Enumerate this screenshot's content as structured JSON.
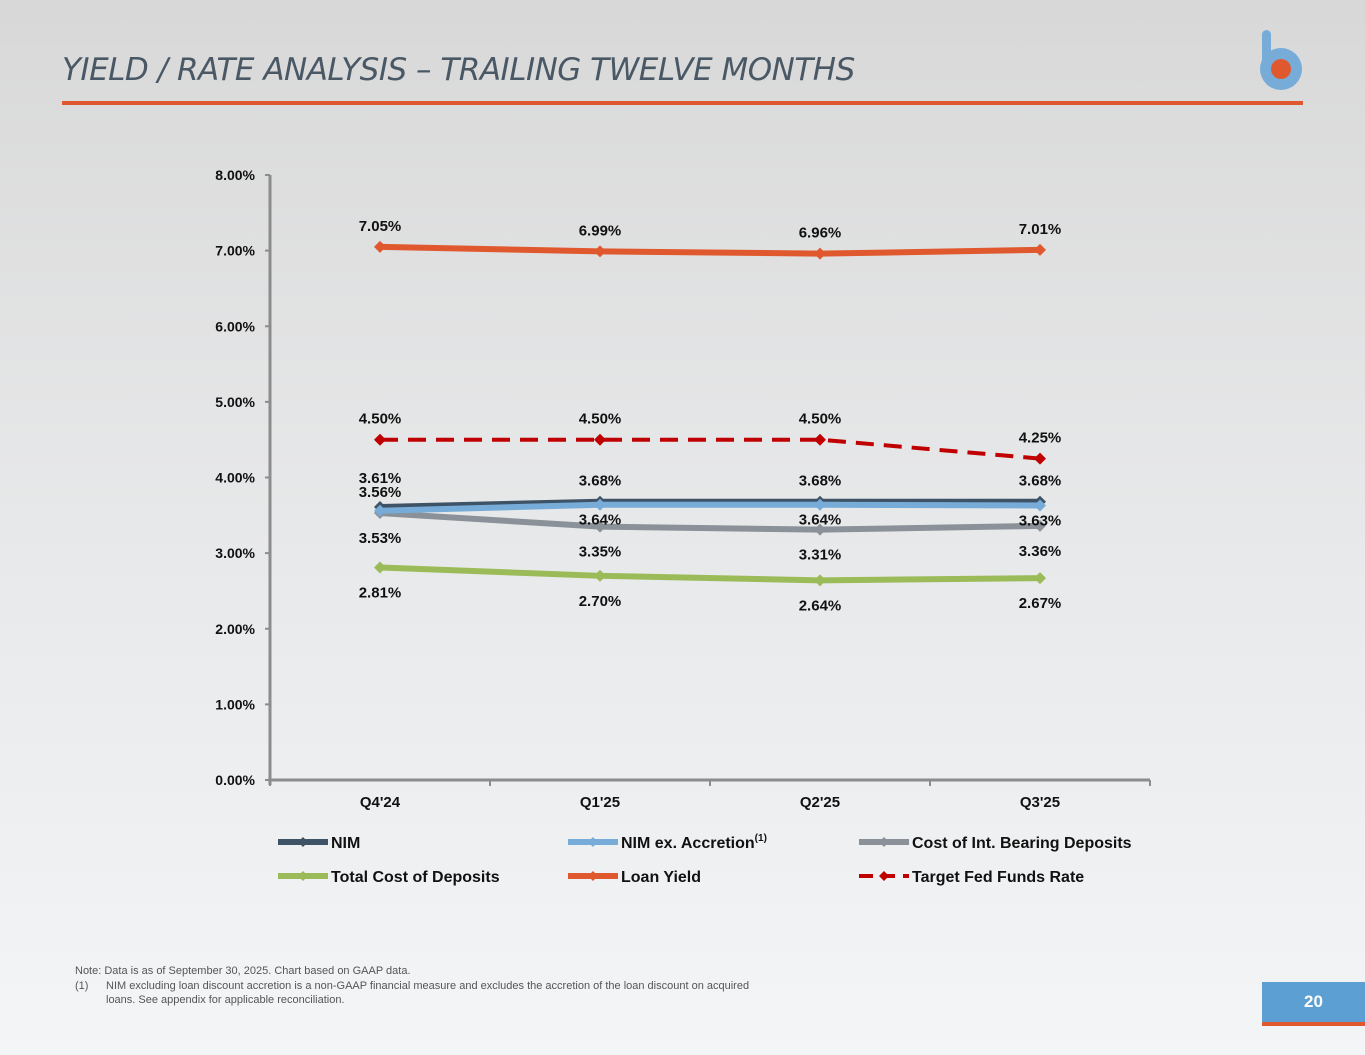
{
  "page": {
    "title": "YIELD / RATE ANALYSIS – TRAILING TWELVE MONTHS",
    "page_number": "20",
    "logo_icon": "b-logo-icon",
    "accent_color": "#e0582e",
    "brand_blue": "#5b9fd3"
  },
  "footnotes": {
    "note": "Note: Data is as of September 30, 2025. Chart based on GAAP data.",
    "item1_num": "(1)",
    "item1_text": "NIM excluding loan discount accretion is a non-GAAP financial measure and excludes the accretion of the loan discount on acquired loans. See appendix for applicable reconciliation."
  },
  "chart_data": {
    "type": "line",
    "title": "",
    "xlabel": "",
    "ylabel": "",
    "categories": [
      "Q4'24",
      "Q1'25",
      "Q2'25",
      "Q3'25"
    ],
    "ylim": [
      0,
      8
    ],
    "y_ticks": [
      0,
      1,
      2,
      3,
      4,
      5,
      6,
      7,
      8
    ],
    "y_tick_labels": [
      "0.00%",
      "1.00%",
      "2.00%",
      "3.00%",
      "4.00%",
      "5.00%",
      "6.00%",
      "7.00%",
      "8.00%"
    ],
    "legend_position": "bottom",
    "series": [
      {
        "name": "Loan Yield",
        "color": "#e0582e",
        "dashed": false,
        "values": [
          7.05,
          6.99,
          6.96,
          7.01
        ],
        "labels": [
          "7.05%",
          "6.99%",
          "6.96%",
          "7.01%"
        ],
        "label_pos": "above"
      },
      {
        "name": "Target Fed Funds Rate",
        "color": "#c00000",
        "dashed": true,
        "values": [
          4.5,
          4.5,
          4.5,
          4.25
        ],
        "labels": [
          "4.50%",
          "4.50%",
          "4.50%",
          "4.25%"
        ],
        "label_pos": "above"
      },
      {
        "name": "NIM",
        "color": "#3f5366",
        "dashed": false,
        "values": [
          3.61,
          3.68,
          3.68,
          3.68
        ],
        "labels": [
          "3.61%",
          "3.68%",
          "3.68%",
          "3.68%"
        ],
        "label_pos": "above"
      },
      {
        "name": "NIM ex. Accretion",
        "name_sup": "(1)",
        "color": "#78acd8",
        "dashed": false,
        "values": [
          3.56,
          3.64,
          3.64,
          3.63
        ],
        "labels": [
          "3.56%",
          "3.64%",
          "3.64%",
          "3.63%"
        ],
        "label_pos": "mixed"
      },
      {
        "name": "Cost of Int. Bearing Deposits",
        "color": "#8a9198",
        "dashed": false,
        "values": [
          3.53,
          3.35,
          3.31,
          3.36
        ],
        "labels": [
          "3.53%",
          "3.35%",
          "3.31%",
          "3.36%"
        ],
        "label_pos": "below"
      },
      {
        "name": "Total Cost of Deposits",
        "color": "#9bbb59",
        "dashed": false,
        "values": [
          2.81,
          2.7,
          2.64,
          2.67
        ],
        "labels": [
          "2.81%",
          "2.70%",
          "2.64%",
          "2.67%"
        ],
        "label_pos": "below"
      }
    ],
    "legend_order": [
      "NIM",
      "NIM ex. Accretion",
      "Cost of Int. Bearing Deposits",
      "Total Cost of Deposits",
      "Loan Yield",
      "Target Fed Funds Rate"
    ]
  }
}
